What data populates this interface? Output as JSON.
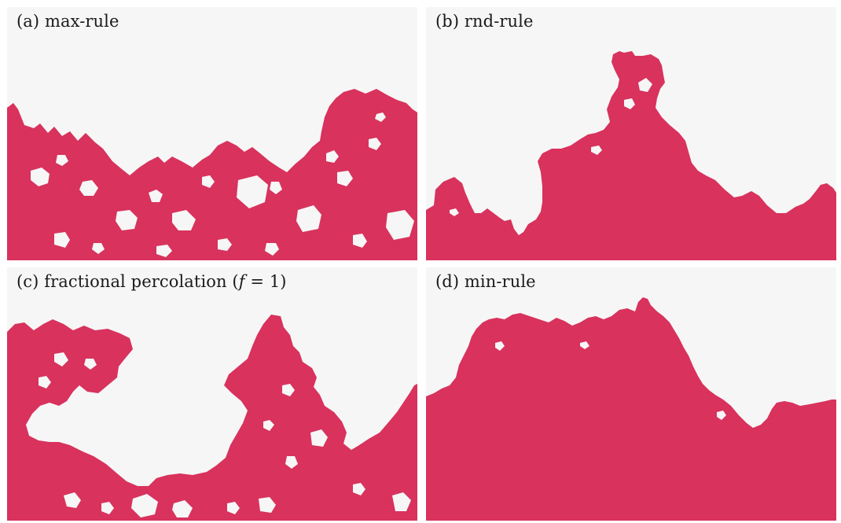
{
  "colors": {
    "cluster": "#d8325d",
    "background": "#f6f6f6",
    "text": "#1a1a1a"
  },
  "panels": [
    {
      "id": "a",
      "label": "(a) max-rule"
    },
    {
      "id": "b",
      "label": "(b) rnd-rule"
    },
    {
      "id": "c",
      "label_prefix": "(c) fractional percolation (",
      "label_var": "f",
      "label_suffix": " = 1)"
    },
    {
      "id": "d",
      "label": "(d) min-rule"
    }
  ]
}
